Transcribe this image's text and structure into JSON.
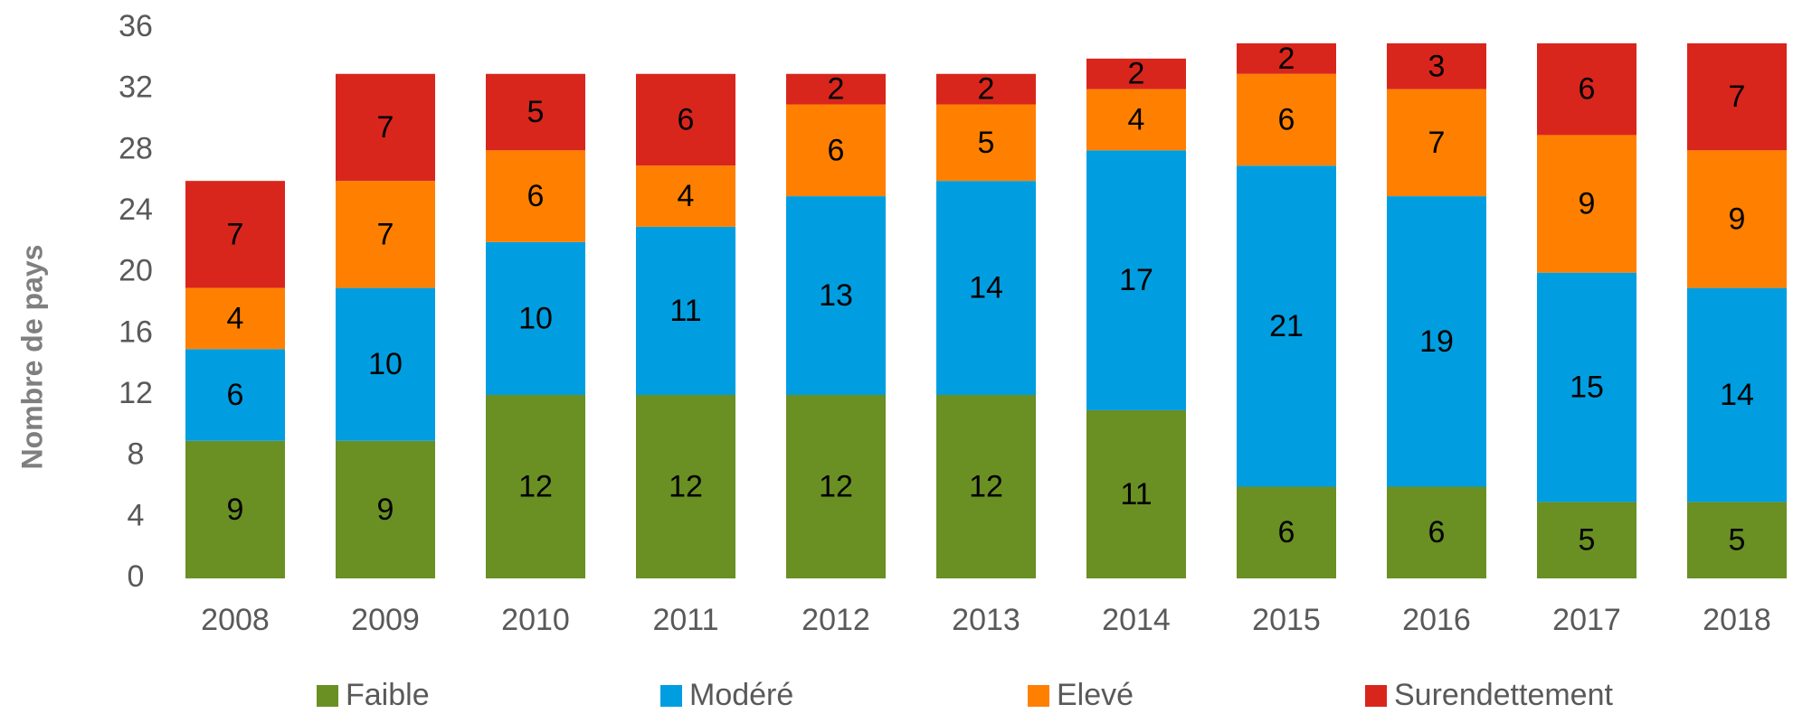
{
  "chart_data": {
    "type": "stacked_bar",
    "y_label": "Nombre de pays",
    "categories": [
      "2008",
      "2009",
      "2010",
      "2011",
      "2012",
      "2013",
      "2014",
      "2015",
      "2016",
      "2017",
      "2018"
    ],
    "series": [
      {
        "name": "Faible",
        "color": "#6a8f23",
        "values": [
          9,
          9,
          12,
          12,
          12,
          12,
          11,
          6,
          6,
          5,
          5
        ]
      },
      {
        "name": "Modéré",
        "color": "#009ee0",
        "values": [
          6,
          10,
          10,
          11,
          13,
          14,
          17,
          21,
          19,
          15,
          14
        ]
      },
      {
        "name": "Elevé",
        "color": "#ff8000",
        "values": [
          4,
          7,
          6,
          4,
          6,
          5,
          4,
          6,
          7,
          9,
          9
        ]
      },
      {
        "name": "Surendettement",
        "color": "#d9261c",
        "values": [
          7,
          7,
          5,
          6,
          2,
          2,
          2,
          2,
          3,
          6,
          7
        ]
      }
    ],
    "ylim": [
      0,
      36
    ],
    "yticks": [
      0,
      4,
      8,
      12,
      16,
      20,
      24,
      28,
      32,
      36
    ]
  }
}
